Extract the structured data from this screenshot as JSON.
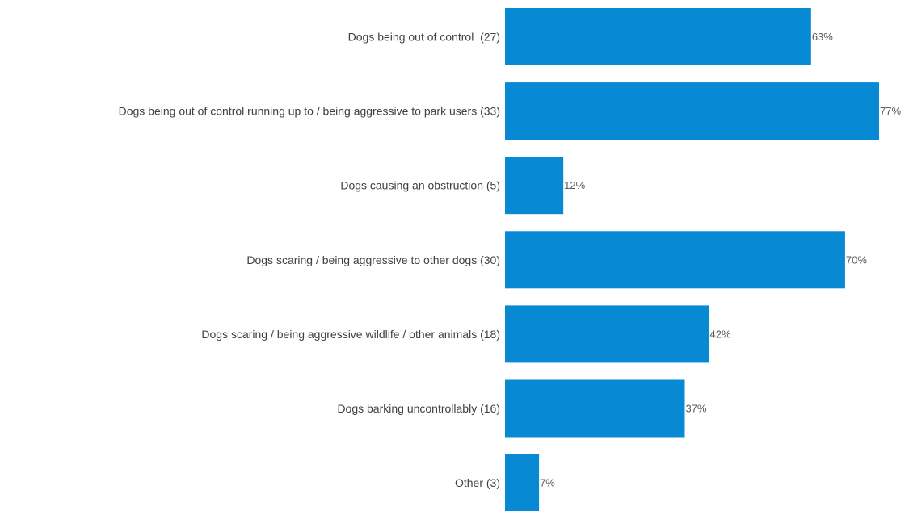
{
  "chart_data": {
    "type": "bar",
    "orientation": "horizontal",
    "title": "",
    "xlabel": "",
    "ylabel": "",
    "categories": [
      "Dogs being out of control  (27)",
      "Dogs being out of control running up to / being aggressive to park users (33)",
      "Dogs causing an obstruction (5)",
      "Dogs scaring / being aggressive to other dogs (30)",
      "Dogs scaring / being aggressive wildlife / other animals (18)",
      "Dogs barking uncontrollably (16)",
      "Other (3)"
    ],
    "values": [
      63,
      77,
      12,
      70,
      42,
      37,
      7
    ],
    "value_labels": [
      "63%",
      "77%",
      "12%",
      "70%",
      "42%",
      "37%",
      "7%"
    ],
    "unit": "%",
    "xlim": [
      0,
      77
    ],
    "grid": false,
    "legend": "none",
    "bar_color": "#0789D4"
  }
}
